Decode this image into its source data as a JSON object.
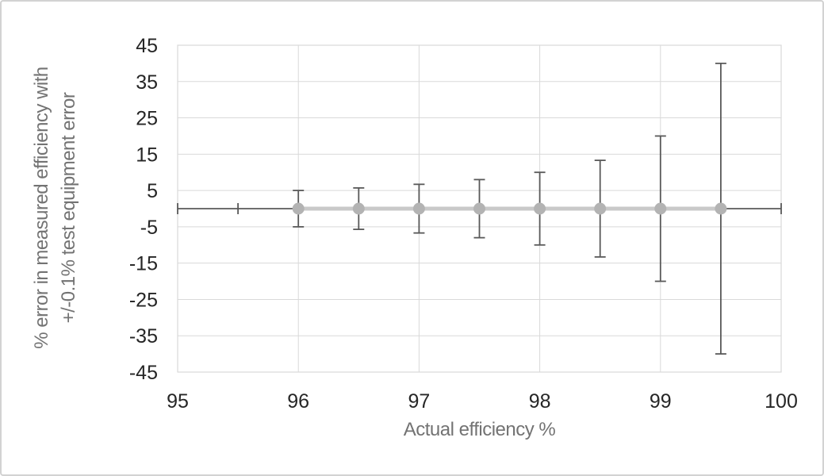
{
  "chart_data": {
    "type": "scatter",
    "title": "",
    "xlabel": "Actual efficiency %",
    "ylabel_line1": "% error in measured efficiency with",
    "ylabel_line2": "+/-0.1% test equipment error",
    "xlim": [
      95,
      100
    ],
    "ylim": [
      -45,
      45
    ],
    "x_ticks": [
      95,
      96,
      97,
      98,
      99,
      100
    ],
    "y_ticks": [
      45,
      35,
      25,
      15,
      5,
      -5,
      -15,
      -25,
      -35,
      -45
    ],
    "grid": true,
    "legend_position": "none",
    "series": [
      {
        "name": "% error in measured efficiency",
        "marker": "circle",
        "x": [
          96,
          96.5,
          97,
          97.5,
          98,
          98.5,
          99,
          99.5
        ],
        "y": [
          0,
          0,
          0,
          0,
          0,
          0,
          0,
          0
        ],
        "y_error": [
          5,
          5.7,
          6.7,
          8,
          10,
          13.3,
          20,
          40
        ]
      }
    ],
    "baseline": {
      "y": 0,
      "x_from": 95,
      "x_to": 100,
      "cap_positions": [
        95,
        95.5,
        100
      ]
    },
    "colors": {
      "series_line": "#c9c9c9",
      "marker": "#b3b3b3",
      "error_bar": "#595959",
      "gridline": "#d9d9d9",
      "tick_label": "#262626",
      "axis_title": "#737373",
      "figure_border": "#d2d2d2",
      "background": "#ffffff"
    }
  }
}
